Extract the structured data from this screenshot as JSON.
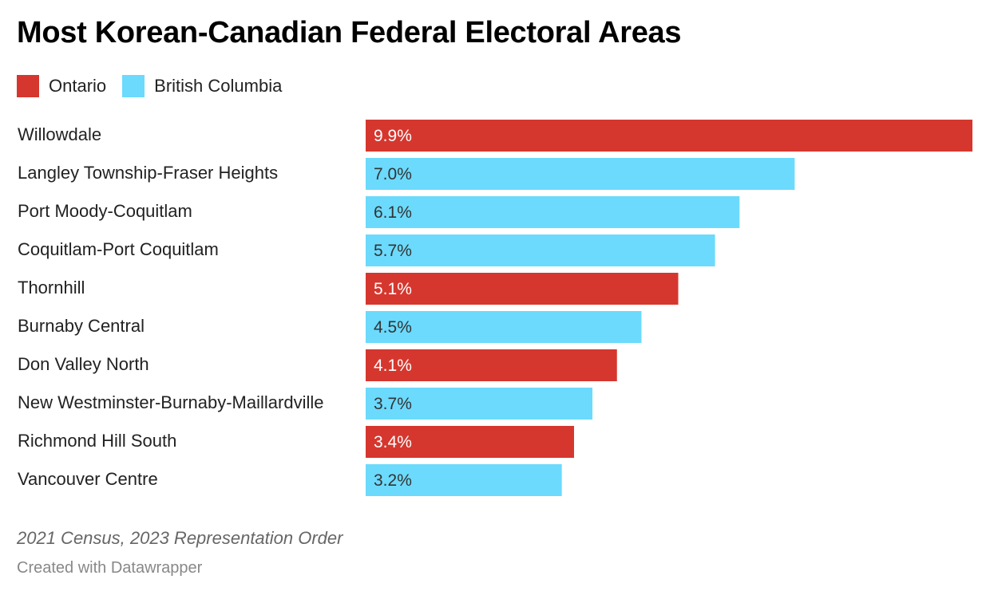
{
  "chart_data": {
    "type": "bar",
    "orientation": "horizontal",
    "title": "Most Korean-Canadian Federal Electoral Areas",
    "xlabel": "",
    "ylabel": "",
    "legend": {
      "placement": "top-left",
      "entries": [
        {
          "name": "Ontario",
          "color": "#d5372e"
        },
        {
          "name": "British Columbia",
          "color": "#6bdafd"
        }
      ]
    },
    "xlim": [
      0,
      9.9
    ],
    "grid": false,
    "categories": [
      "Willowdale",
      "Langley Township-Fraser Heights",
      "Port Moody-Coquitlam",
      "Coquitlam-Port Coquitlam",
      "Thornhill",
      "Burnaby Central",
      "Don Valley North",
      "New Westminster-Burnaby-Maillardville",
      "Richmond Hill South",
      "Vancouver Centre"
    ],
    "values": [
      9.9,
      7.0,
      6.1,
      5.7,
      5.1,
      4.5,
      4.1,
      3.7,
      3.4,
      3.2
    ],
    "value_labels": [
      "9.9%",
      "7.0%",
      "6.1%",
      "5.7%",
      "5.1%",
      "4.5%",
      "4.1%",
      "3.7%",
      "3.4%",
      "3.2%"
    ],
    "groups": [
      "Ontario",
      "British Columbia",
      "British Columbia",
      "British Columbia",
      "Ontario",
      "British Columbia",
      "Ontario",
      "British Columbia",
      "Ontario",
      "British Columbia"
    ],
    "value_label_colors": {
      "Ontario": "#ffffff",
      "British Columbia": "#333333"
    }
  },
  "footer": {
    "notes": "2021 Census, 2023 Representation Order",
    "credit": "Created with Datawrapper"
  }
}
